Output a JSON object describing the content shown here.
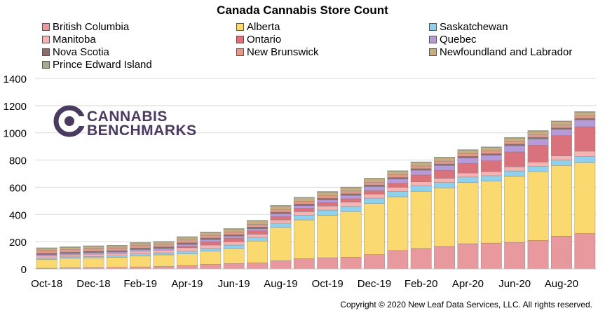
{
  "colors": {
    "British Columbia": "#e8999d",
    "Alberta": "#fad971",
    "Saskatchewan": "#8fd0ec",
    "Manitoba": "#f5b3b3",
    "Ontario": "#d9727a",
    "Quebec": "#b79bd9",
    "Nova Scotia": "#8c6b6b",
    "New Brunswick": "#e2998a",
    "Newfoundland and Labrador": "#c7ad80",
    "Prince Edward Island": "#9fae8c"
  },
  "logo": {
    "line1": "CANNABIS",
    "line2": "BENCHMARKS"
  },
  "copyright": "Copyright © 2020 New Leaf Data Services, LLC. All rights reserved.",
  "chart_data": {
    "type": "bar",
    "stacked": true,
    "title": "Canada Cannabis Store Count",
    "xlabel": "",
    "ylabel": "",
    "ylim": [
      0,
      1400
    ],
    "yticks": [
      0,
      200,
      400,
      600,
      800,
      1000,
      1200,
      1400
    ],
    "grid": true,
    "legend_position": "top",
    "categories": [
      "Oct-18",
      "Nov-18",
      "Dec-18",
      "Jan-19",
      "Feb-19",
      "Mar-19",
      "Apr-19",
      "May-19",
      "Jun-19",
      "Jul-19",
      "Aug-19",
      "Sep-19",
      "Oct-19",
      "Nov-19",
      "Dec-19",
      "Jan-20",
      "Feb-20",
      "Mar-20",
      "Apr-20",
      "May-20",
      "Jun-20",
      "Jul-20",
      "Aug-20",
      "Sep-20"
    ],
    "x_tick_labels": [
      "Oct-18",
      "Dec-18",
      "Feb-19",
      "Apr-19",
      "Jun-19",
      "Aug-19",
      "Oct-19",
      "Dec-19",
      "Feb-20",
      "Apr-20",
      "Jun-20",
      "Aug-20"
    ],
    "series": [
      {
        "name": "British Columbia",
        "values": [
          5,
          8,
          10,
          12,
          15,
          18,
          25,
          35,
          40,
          45,
          60,
          75,
          82,
          85,
          105,
          135,
          150,
          165,
          185,
          190,
          195,
          210,
          240,
          260
        ]
      },
      {
        "name": "Alberta",
        "values": [
          65,
          70,
          70,
          72,
          80,
          85,
          85,
          95,
          110,
          160,
          245,
          285,
          310,
          335,
          375,
          395,
          420,
          430,
          450,
          455,
          485,
          505,
          520,
          520
        ]
      },
      {
        "name": "Saskatchewan",
        "values": [
          10,
          10,
          10,
          10,
          15,
          15,
          20,
          20,
          25,
          25,
          30,
          35,
          40,
          40,
          40,
          40,
          40,
          40,
          40,
          40,
          40,
          40,
          40,
          45
        ]
      },
      {
        "name": "Manitoba",
        "values": [
          15,
          15,
          18,
          18,
          20,
          20,
          25,
          25,
          25,
          25,
          25,
          25,
          30,
          30,
          30,
          30,
          30,
          30,
          30,
          30,
          30,
          30,
          30,
          40
        ]
      },
      {
        "name": "Ontario",
        "values": [
          0,
          0,
          0,
          0,
          0,
          0,
          10,
          25,
          25,
          25,
          25,
          25,
          25,
          25,
          25,
          30,
          50,
          60,
          70,
          80,
          110,
          125,
          150,
          180
        ]
      },
      {
        "name": "Quebec",
        "values": [
          10,
          10,
          12,
          12,
          12,
          12,
          15,
          15,
          15,
          15,
          20,
          20,
          20,
          25,
          30,
          30,
          35,
          35,
          40,
          40,
          45,
          45,
          45,
          50
        ]
      },
      {
        "name": "Nova Scotia",
        "values": [
          10,
          10,
          10,
          10,
          12,
          12,
          12,
          12,
          12,
          12,
          12,
          12,
          12,
          12,
          12,
          12,
          12,
          12,
          12,
          12,
          12,
          12,
          12,
          12
        ]
      },
      {
        "name": "New Brunswick",
        "values": [
          20,
          20,
          20,
          20,
          20,
          20,
          20,
          20,
          20,
          20,
          20,
          20,
          20,
          20,
          20,
          20,
          20,
          20,
          20,
          20,
          20,
          20,
          20,
          20
        ]
      },
      {
        "name": "Newfoundland and Labrador",
        "values": [
          15,
          15,
          15,
          15,
          15,
          15,
          20,
          20,
          20,
          25,
          25,
          25,
          25,
          25,
          25,
          25,
          25,
          25,
          25,
          25,
          25,
          25,
          25,
          25
        ]
      },
      {
        "name": "Prince Edward Island",
        "values": [
          5,
          5,
          5,
          5,
          5,
          5,
          5,
          5,
          5,
          5,
          5,
          5,
          5,
          5,
          5,
          5,
          5,
          5,
          5,
          5,
          5,
          5,
          5,
          5
        ]
      }
    ]
  }
}
